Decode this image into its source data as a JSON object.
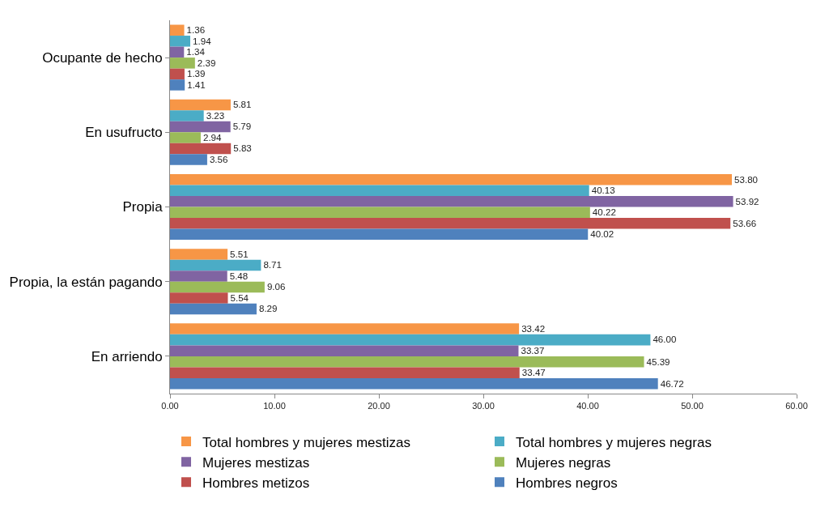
{
  "chart_data": {
    "type": "bar",
    "orientation": "horizontal",
    "categories": [
      "Ocupante de hecho",
      "En usufructo",
      "Propia",
      "Propia, la están pagando",
      "En arriendo"
    ],
    "series": [
      {
        "name": "Total hombres y mujeres mestizas",
        "color": "#f79646",
        "values": [
          1.36,
          5.81,
          53.8,
          5.51,
          33.42
        ],
        "value_labels": [
          "1.36",
          "5.81",
          "53.80",
          "5.51",
          "33.42"
        ]
      },
      {
        "name": "Total hombres y mujeres negras",
        "color": "#4bacc6",
        "values": [
          1.94,
          3.23,
          40.13,
          8.71,
          46.0
        ],
        "value_labels": [
          "1.94",
          "3.23",
          "40.13",
          "8.71",
          "46.00"
        ]
      },
      {
        "name": "Mujeres mestizas",
        "color": "#8064a2",
        "values": [
          1.34,
          5.79,
          53.92,
          5.48,
          33.37
        ],
        "value_labels": [
          "1.34",
          "5.79",
          "53.92",
          "5.48",
          "33.37"
        ]
      },
      {
        "name": "Mujeres negras",
        "color": "#9bbb59",
        "values": [
          2.39,
          2.94,
          40.22,
          9.06,
          45.39
        ],
        "value_labels": [
          "2.39",
          "2.94",
          "40.22",
          "9.06",
          "45.39"
        ]
      },
      {
        "name": "Hombres metizos",
        "color": "#c0504d",
        "values": [
          1.39,
          5.83,
          53.66,
          5.54,
          33.47
        ],
        "value_labels": [
          "1.39",
          "5.83",
          "53.66",
          "5.54",
          "33.47"
        ]
      },
      {
        "name": "Hombres negros",
        "color": "#4f81bd",
        "values": [
          1.41,
          3.56,
          40.02,
          8.29,
          46.72
        ],
        "value_labels": [
          "1.41",
          "3.56",
          "40.02",
          "8.29",
          "46.72"
        ]
      }
    ],
    "xlim": [
      0,
      60
    ],
    "xticks": [
      {
        "value": 0,
        "label": "0.00"
      },
      {
        "value": 10,
        "label": "10.00"
      },
      {
        "value": 20,
        "label": "20.00"
      },
      {
        "value": 30,
        "label": "30.00"
      },
      {
        "value": 40,
        "label": "40.00"
      },
      {
        "value": 50,
        "label": "50.00"
      },
      {
        "value": 60,
        "label": "60.00"
      }
    ],
    "legend": "bottom"
  }
}
